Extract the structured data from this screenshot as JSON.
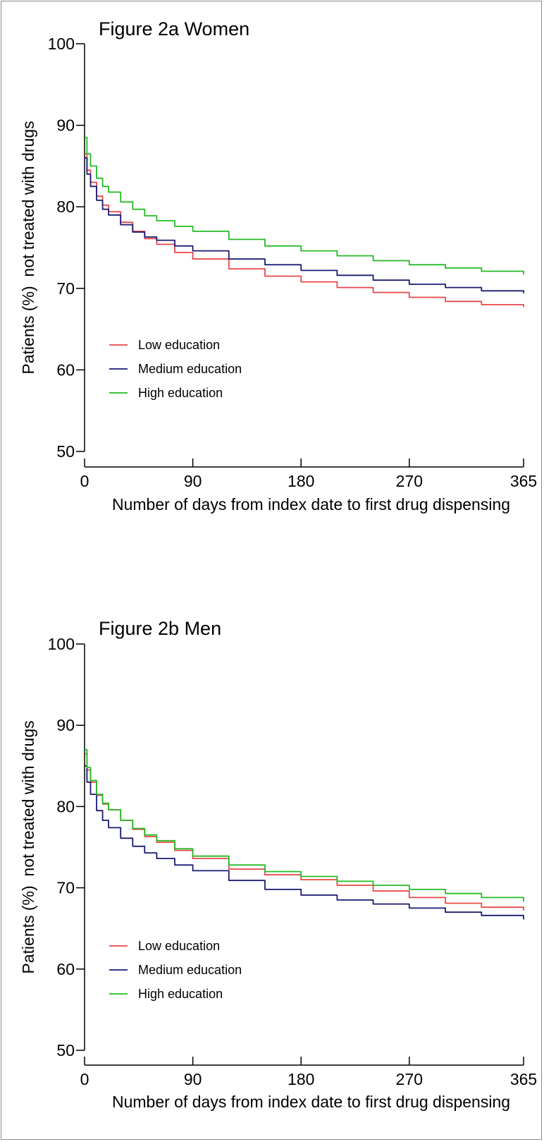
{
  "chart_data": [
    {
      "type": "line",
      "title": "Figure 2a Women",
      "xlabel": "Number of days from index date to first drug dispensing",
      "ylabel": "Patients (%)  not treated with drugs",
      "xlim": [
        0,
        365
      ],
      "ylim": [
        50,
        100
      ],
      "xticks": [
        "0",
        "90",
        "180",
        "270",
        "365"
      ],
      "yticks": [
        "50",
        "60",
        "70",
        "80",
        "90",
        "100"
      ],
      "legend_placement": "lower-left",
      "grid": false,
      "series": [
        {
          "name": "Low education",
          "color": "#e8474a",
          "x": [
            0,
            2,
            5,
            10,
            15,
            20,
            30,
            40,
            50,
            60,
            75,
            90,
            120,
            150,
            180,
            210,
            240,
            270,
            300,
            330,
            365
          ],
          "y": [
            86.5,
            84.5,
            83.0,
            81.3,
            80.2,
            79.4,
            78.1,
            77.0,
            76.1,
            75.4,
            74.4,
            73.6,
            72.4,
            71.5,
            70.8,
            70.1,
            69.5,
            68.9,
            68.4,
            68.0,
            67.7
          ]
        },
        {
          "name": "Medium education",
          "color": "#1a1a72",
          "x": [
            0,
            2,
            5,
            10,
            15,
            20,
            30,
            40,
            50,
            60,
            75,
            90,
            120,
            150,
            180,
            210,
            240,
            270,
            300,
            330,
            365
          ],
          "y": [
            86.0,
            84.0,
            82.5,
            80.8,
            79.7,
            79.0,
            77.8,
            76.9,
            76.3,
            75.9,
            75.2,
            74.6,
            73.6,
            72.9,
            72.2,
            71.6,
            71.0,
            70.5,
            70.1,
            69.7,
            69.4
          ]
        },
        {
          "name": "High education",
          "color": "#22bb22",
          "x": [
            0,
            2,
            5,
            10,
            15,
            20,
            30,
            40,
            50,
            60,
            75,
            90,
            120,
            150,
            180,
            210,
            240,
            270,
            300,
            330,
            365
          ],
          "y": [
            88.5,
            86.5,
            85.0,
            83.5,
            82.5,
            81.8,
            80.6,
            79.7,
            78.9,
            78.3,
            77.6,
            77.0,
            76.0,
            75.2,
            74.6,
            74.0,
            73.4,
            72.9,
            72.5,
            72.1,
            71.7
          ]
        }
      ]
    },
    {
      "type": "line",
      "title": "Figure 2b Men",
      "xlabel": "Number of days from index date to first drug dispensing",
      "ylabel": "Patients (%)  not treated with drugs",
      "xlim": [
        0,
        365
      ],
      "ylim": [
        50,
        100
      ],
      "xticks": [
        "0",
        "90",
        "180",
        "270",
        "365"
      ],
      "yticks": [
        "50",
        "60",
        "70",
        "80",
        "90",
        "100"
      ],
      "legend_placement": "lower-left",
      "grid": false,
      "series": [
        {
          "name": "Low education",
          "color": "#e8474a",
          "x": [
            0,
            2,
            5,
            10,
            15,
            20,
            30,
            40,
            50,
            60,
            75,
            90,
            120,
            150,
            180,
            210,
            240,
            270,
            300,
            330,
            365
          ],
          "y": [
            86.5,
            84.5,
            83.0,
            81.4,
            80.3,
            79.6,
            78.3,
            77.2,
            76.3,
            75.6,
            74.6,
            73.6,
            72.3,
            71.6,
            71.0,
            70.3,
            69.6,
            68.8,
            68.1,
            67.6,
            67.2
          ]
        },
        {
          "name": "Medium education",
          "color": "#1a1a72",
          "x": [
            0,
            2,
            5,
            10,
            15,
            20,
            30,
            40,
            50,
            60,
            75,
            90,
            120,
            150,
            180,
            210,
            240,
            270,
            300,
            330,
            365
          ],
          "y": [
            85.0,
            83.0,
            81.5,
            79.5,
            78.3,
            77.4,
            76.1,
            75.1,
            74.3,
            73.6,
            72.8,
            72.1,
            70.9,
            69.8,
            69.1,
            68.5,
            68.0,
            67.5,
            67.0,
            66.6,
            66.1
          ]
        },
        {
          "name": "High education",
          "color": "#22bb22",
          "x": [
            0,
            2,
            5,
            10,
            15,
            20,
            30,
            40,
            50,
            60,
            75,
            90,
            120,
            150,
            180,
            210,
            240,
            270,
            300,
            330,
            365
          ],
          "y": [
            87.0,
            84.8,
            83.2,
            81.5,
            80.4,
            79.6,
            78.3,
            77.3,
            76.5,
            75.8,
            74.8,
            73.9,
            72.8,
            72.0,
            71.4,
            70.8,
            70.3,
            69.8,
            69.3,
            68.8,
            68.3
          ]
        }
      ]
    }
  ]
}
